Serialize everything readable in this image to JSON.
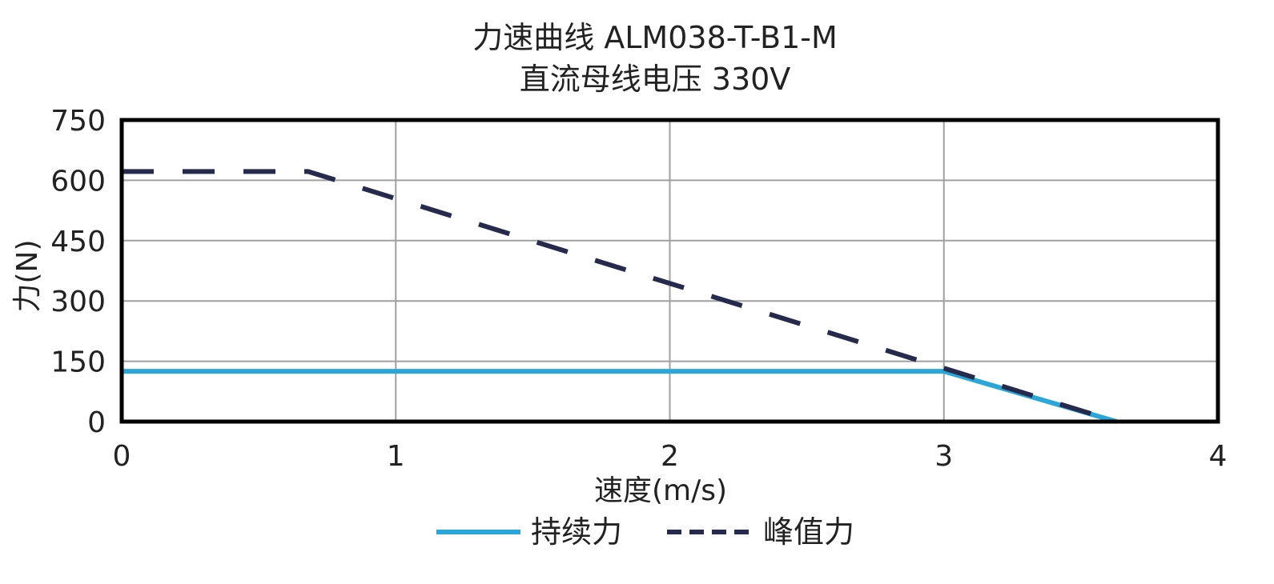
{
  "chart_data": {
    "type": "line",
    "title": "力速曲线 ALM038-T-B1-M",
    "subtitle": "直流母线电压 330V",
    "xlabel": "速度(m/s)",
    "ylabel": "力(N)",
    "xlim": [
      0,
      4
    ],
    "ylim": [
      0,
      750
    ],
    "xticks": [
      "0",
      "1",
      "2",
      "3",
      "4"
    ],
    "yticks": [
      "0",
      "150",
      "300",
      "450",
      "600",
      "750"
    ],
    "grid": true,
    "legend_position": "bottom",
    "series": [
      {
        "name": "持续力",
        "color": "#2aa6d9",
        "style": "solid",
        "points": [
          [
            0,
            125
          ],
          [
            3.0,
            125
          ],
          [
            3.63,
            0
          ]
        ]
      },
      {
        "name": "峰值力",
        "color": "#262a4d",
        "style": "dashed",
        "points": [
          [
            0,
            622
          ],
          [
            0.68,
            622
          ],
          [
            3.63,
            0
          ]
        ]
      }
    ]
  }
}
